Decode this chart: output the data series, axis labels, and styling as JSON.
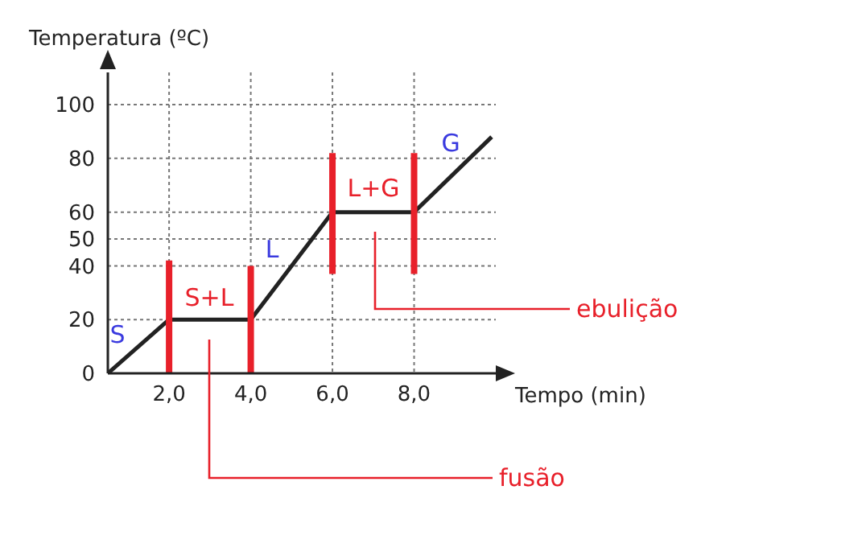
{
  "chart_data": {
    "type": "line",
    "xlabel": "Tempo (min)",
    "ylabel": "Temperatura (ºC)",
    "xlim": [
      0.5,
      10
    ],
    "ylim": [
      0,
      112
    ],
    "xticks": [
      {
        "value": 2,
        "label": "2,0"
      },
      {
        "value": 4,
        "label": "4,0"
      },
      {
        "value": 6,
        "label": "6,0"
      },
      {
        "value": 8,
        "label": "8,0"
      }
    ],
    "yticks": [
      0,
      20,
      40,
      50,
      60,
      80,
      100
    ],
    "grid": true,
    "marker": "none",
    "line_style": "solid",
    "series": [
      {
        "color": "#222222",
        "x": [
          0.5,
          2,
          4,
          6,
          8,
          9.9
        ],
        "values": [
          0,
          20,
          20,
          60,
          60,
          88
        ]
      },
      {
        "color": "#e8202a",
        "x": [
          2,
          2
        ],
        "values": [
          0,
          42
        ]
      },
      {
        "color": "#e8202a",
        "x": [
          4,
          4
        ],
        "values": [
          0,
          40
        ]
      },
      {
        "color": "#e8202a",
        "x": [
          6,
          6
        ],
        "values": [
          37,
          82
        ]
      },
      {
        "color": "#e8202a",
        "x": [
          8,
          8
        ],
        "values": [
          37,
          82
        ]
      }
    ],
    "annotations": [
      "S",
      "S+L",
      "L",
      "L+G",
      "G",
      "fusão",
      "ebulição"
    ]
  }
}
